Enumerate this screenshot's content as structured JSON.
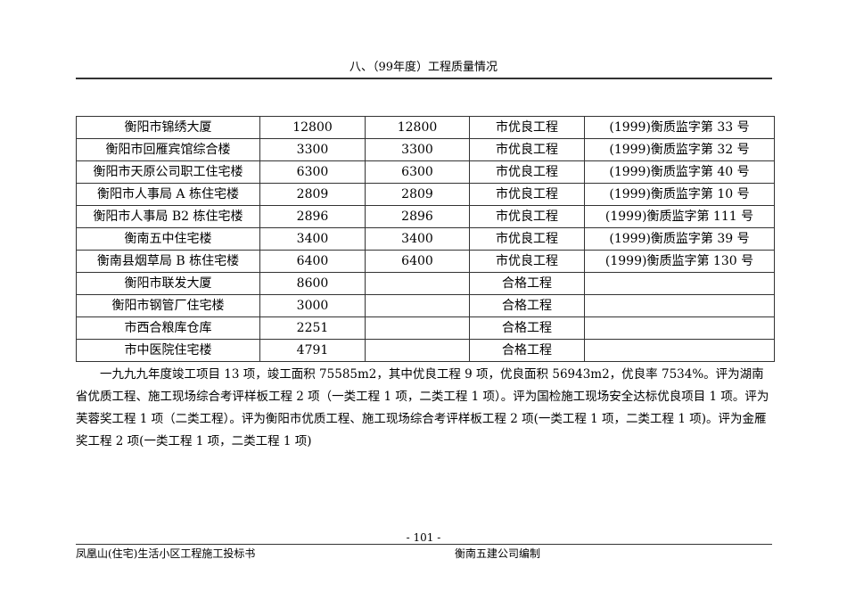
{
  "header": {
    "title": "八、（99年度）工程质量情况"
  },
  "table": {
    "rows": [
      [
        "衡阳市锦绣大厦",
        "12800",
        "12800",
        "市优良工程",
        "(1999)衡质监字第 33 号"
      ],
      [
        "衡阳市回雁宾馆综合楼",
        "3300",
        "3300",
        "市优良工程",
        "(1999)衡质监字第 32 号"
      ],
      [
        "衡阳市天原公司职工住宅楼",
        "6300",
        "6300",
        "市优良工程",
        "(1999)衡质监字第 40 号"
      ],
      [
        "衡阳市人事局 A 栋住宅楼",
        "2809",
        "2809",
        "市优良工程",
        "(1999)衡质监字第 10 号"
      ],
      [
        "衡阳市人事局 B2 栋住宅楼",
        "2896",
        "2896",
        "市优良工程",
        "(1999)衡质监字第 111 号"
      ],
      [
        "衡南五中住宅楼",
        "3400",
        "3400",
        "市优良工程",
        "(1999)衡质监字第 39 号"
      ],
      [
        "衡南县烟草局 B 栋住宅楼",
        "6400",
        "6400",
        "市优良工程",
        "(1999)衡质监字第 130 号"
      ],
      [
        "衡阳市联发大厦",
        "8600",
        "",
        "合格工程",
        ""
      ],
      [
        "衡阳市钢管厂住宅楼",
        "3000",
        "",
        "合格工程",
        ""
      ],
      [
        "市西合粮库仓库",
        "2251",
        "",
        "合格工程",
        ""
      ],
      [
        "市中医院住宅楼",
        "4791",
        "",
        "合格工程",
        ""
      ]
    ]
  },
  "summary": "一九九九年度竣工项目 13 项，竣工面积 75585m2，其中优良工程 9 项，优良面积 56943m2，优良率 7534%。评为湖南省优质工程、施工现场综合考评样板工程 2 项（一类工程 1 项，二类工程 1 项）。评为国检施工现场安全达标优良项目 1 项。评为芙蓉奖工程 1 项（二类工程）。评为衡阳市优质工程、施工现场综合考评样板工程 2 项(一类工程 1 项，二类工程 1 项)。评为金雁奖工程 2 项(一类工程 1 项，二类工程 1 项)",
  "footer": {
    "page_number": "- 101 -",
    "left": "凤凰山(住宅)生活小区工程施工投标书",
    "right": "衡南五建公司编制"
  }
}
